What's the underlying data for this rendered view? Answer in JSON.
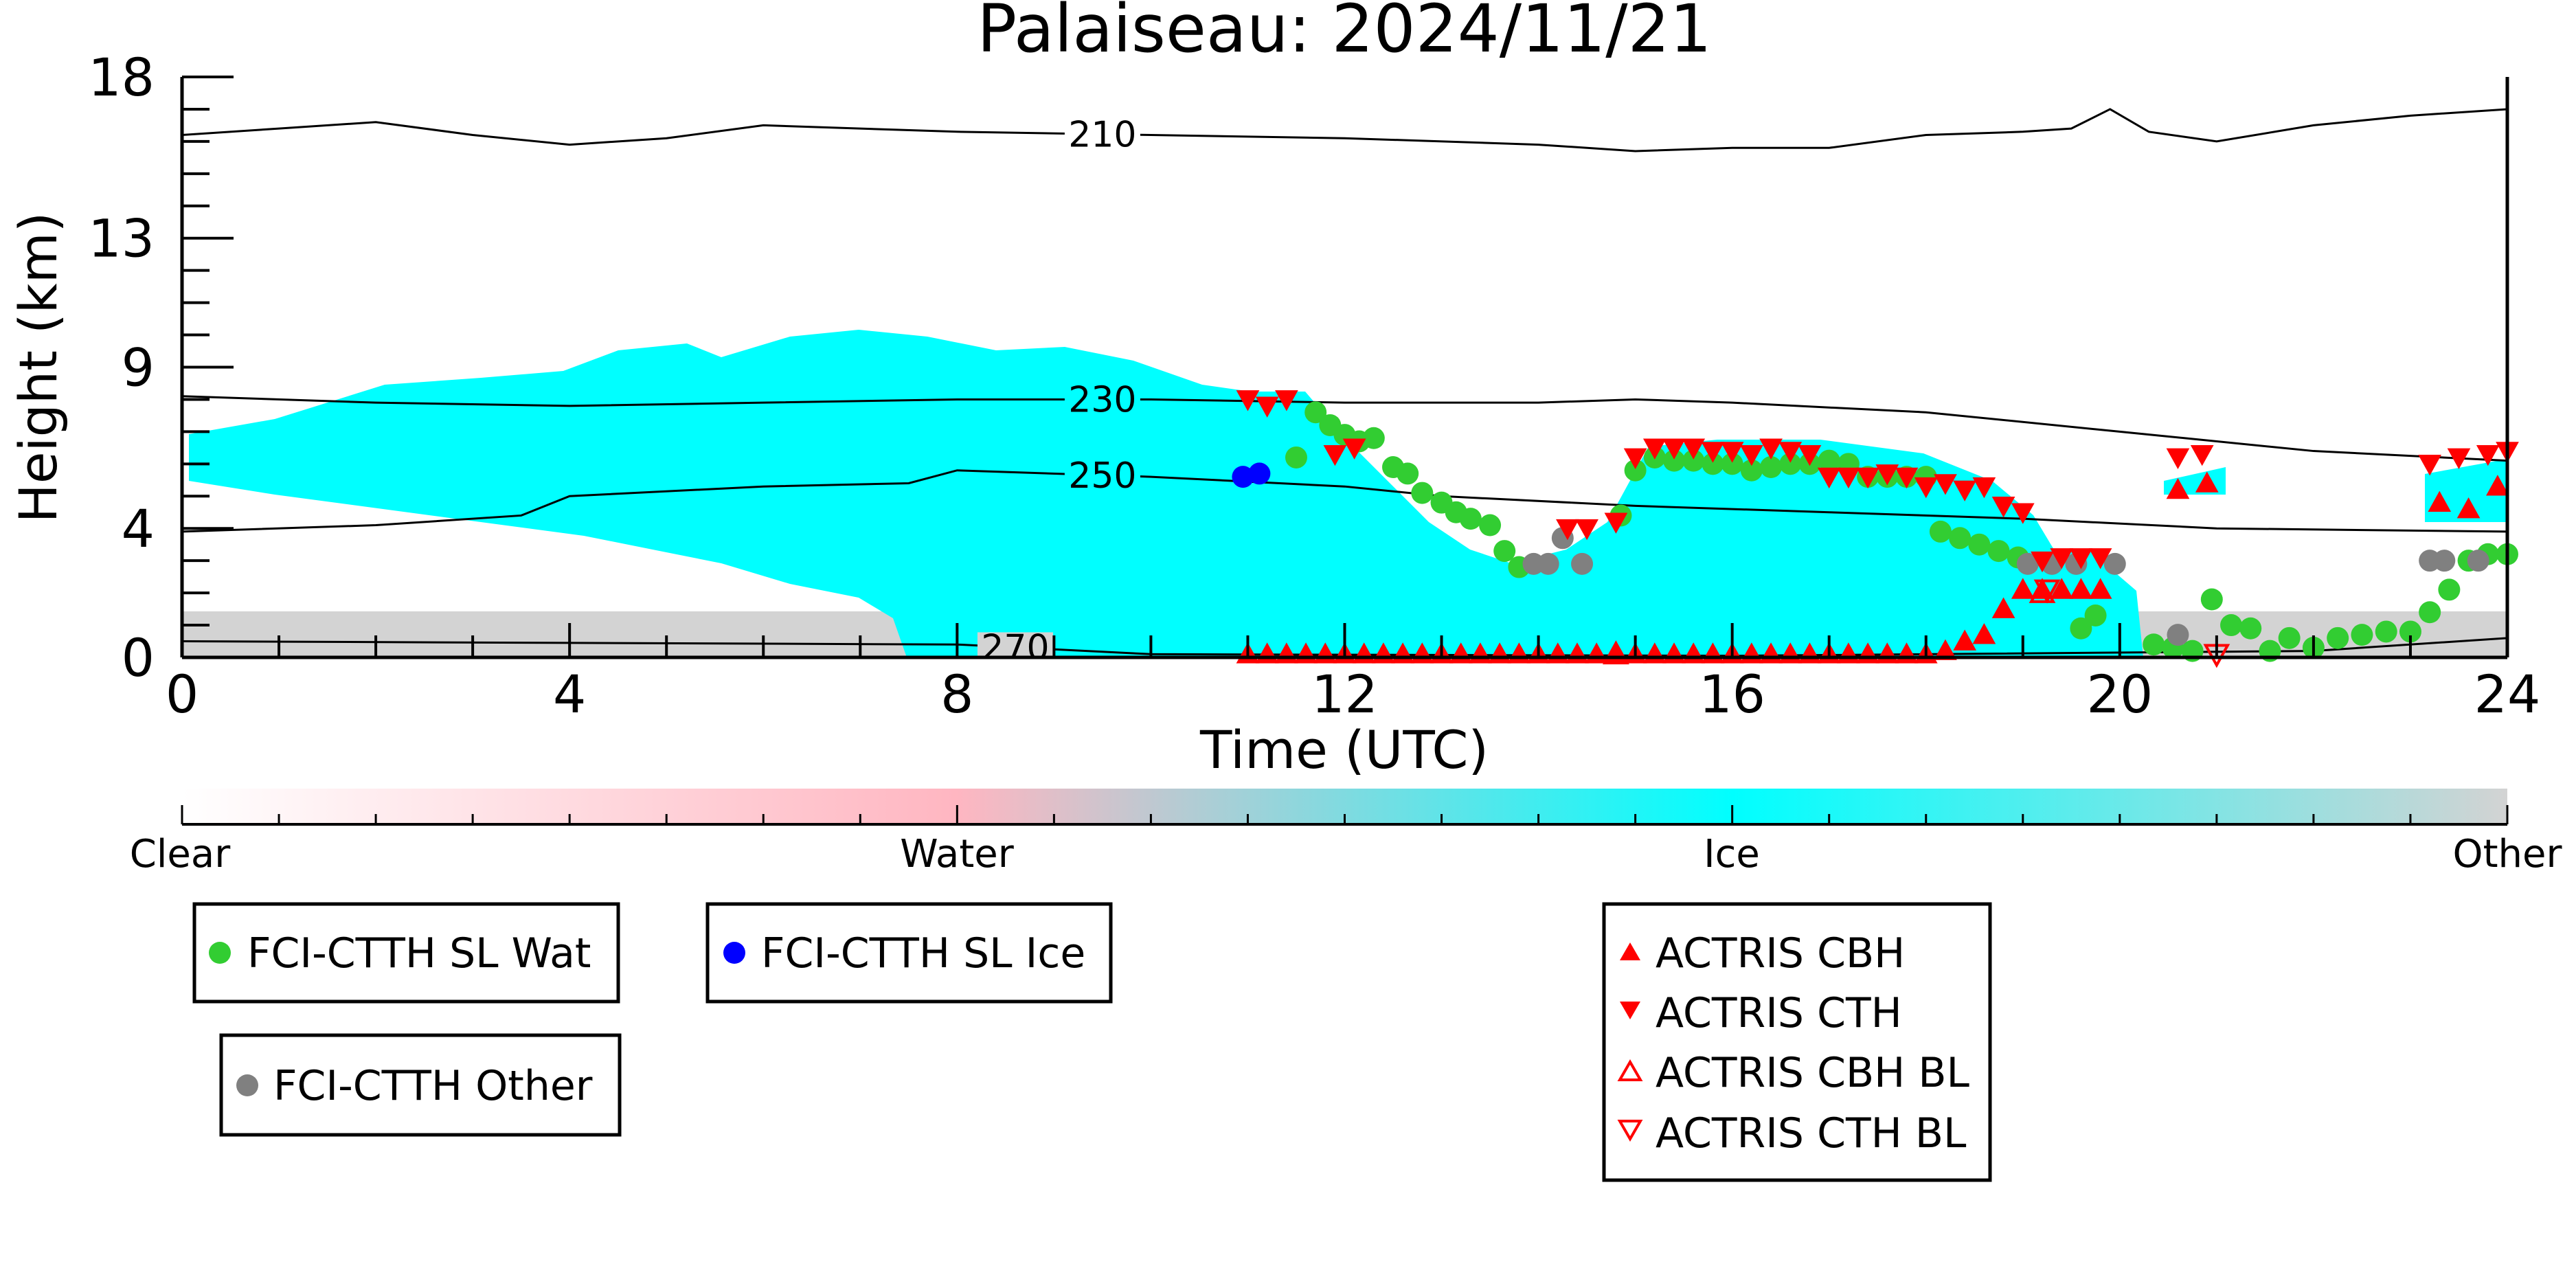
{
  "chart_data": {
    "type": "scatter",
    "title": "Palaiseau: 2024/11/21",
    "xlabel": "Time (UTC)",
    "ylabel": "Height (km)",
    "xlim": [
      0,
      24
    ],
    "ylim": [
      0,
      18
    ],
    "xticks": [
      0,
      4,
      8,
      12,
      16,
      20,
      24
    ],
    "yticks": [
      0,
      4,
      9,
      13,
      18
    ],
    "grid": false,
    "colorbar": {
      "labels": [
        "Clear",
        "Water",
        "Ice",
        "Other"
      ],
      "positions": [
        0,
        1,
        2,
        3
      ],
      "colors": [
        "#ffffff",
        "#ffb6c1",
        "#00ffff",
        "#d3d3d3"
      ]
    },
    "contours": [
      {
        "label": "210",
        "x": [
          0,
          1,
          2,
          3,
          4,
          5,
          6,
          8,
          10,
          12,
          14,
          15,
          16,
          17,
          18,
          19,
          19.5,
          19.9,
          20.3,
          21,
          22,
          23,
          24
        ],
        "y": [
          16.2,
          16.4,
          16.6,
          16.2,
          15.9,
          16.1,
          16.5,
          16.3,
          16.2,
          16.1,
          15.9,
          15.7,
          15.8,
          15.8,
          16.2,
          16.3,
          16.4,
          17.0,
          16.3,
          16.0,
          16.5,
          16.8,
          17.0
        ],
        "label_x": 9.5
      },
      {
        "label": "230",
        "x": [
          0,
          2,
          4,
          6,
          8,
          10,
          12,
          14,
          15,
          16,
          18,
          20,
          22,
          24
        ],
        "y": [
          8.1,
          7.9,
          7.8,
          7.9,
          8.0,
          8.0,
          7.9,
          7.9,
          8.0,
          7.9,
          7.6,
          7.0,
          6.4,
          6.1
        ],
        "label_x": 9.5
      },
      {
        "label": "250",
        "x": [
          0,
          2,
          3.5,
          4,
          6,
          7.5,
          8,
          10,
          12,
          13,
          15,
          17,
          19,
          21,
          24
        ],
        "y": [
          3.9,
          4.1,
          4.4,
          5.0,
          5.3,
          5.4,
          5.8,
          5.6,
          5.3,
          5.0,
          4.7,
          4.5,
          4.3,
          4.0,
          3.9
        ],
        "label_x": 9.5
      },
      {
        "label": "270",
        "x": [
          0,
          4,
          8,
          10,
          16,
          22,
          24
        ],
        "y": [
          0.5,
          0.45,
          0.4,
          0.1,
          0.05,
          0.2,
          0.6
        ],
        "label_x": 8.6
      }
    ],
    "series": [
      {
        "name": "FCI-CTTH SL Wat",
        "marker": "circle",
        "color": "#32cd32",
        "x": [
          11.5,
          11.7,
          11.85,
          12.0,
          12.15,
          12.3,
          12.5,
          12.65,
          12.8,
          13.0,
          13.15,
          13.3,
          13.5,
          13.65,
          13.8,
          14.85,
          15.0,
          15.2,
          15.4,
          15.6,
          15.8,
          16.0,
          16.2,
          16.4,
          16.6,
          16.8,
          17.0,
          17.2,
          17.4,
          17.6,
          17.8,
          18.0,
          18.15,
          18.35,
          18.55,
          18.75,
          18.95,
          19.6,
          19.75,
          20.35,
          20.55,
          20.75,
          20.95,
          21.15,
          21.35,
          21.55,
          21.75,
          22.0,
          22.25,
          22.5,
          22.75,
          23.0,
          23.2,
          23.4,
          23.6,
          23.8,
          24.0
        ],
        "y": [
          6.2,
          7.6,
          7.2,
          6.9,
          6.7,
          6.8,
          5.9,
          5.7,
          5.1,
          4.8,
          4.5,
          4.3,
          4.1,
          3.3,
          2.8,
          4.4,
          5.8,
          6.2,
          6.1,
          6.1,
          6.0,
          6.0,
          5.8,
          5.9,
          6.0,
          6.0,
          6.1,
          6.0,
          5.6,
          5.6,
          5.6,
          5.6,
          3.9,
          3.7,
          3.5,
          3.3,
          3.1,
          0.9,
          1.3,
          0.4,
          0.3,
          0.2,
          1.8,
          1.0,
          0.9,
          0.2,
          0.6,
          0.3,
          0.6,
          0.7,
          0.8,
          0.8,
          1.4,
          2.1,
          3.0,
          3.2,
          3.2
        ]
      },
      {
        "name": "FCI-CTTH SL Ice",
        "marker": "circle",
        "color": "#0000ff",
        "x": [
          10.95,
          11.12
        ],
        "y": [
          5.6,
          5.7
        ]
      },
      {
        "name": "FCI-CTTH Other",
        "marker": "circle",
        "color": "#808080",
        "x": [
          13.95,
          14.1,
          14.25,
          14.45,
          19.05,
          19.3,
          19.55,
          19.95,
          20.6,
          23.2,
          23.35,
          23.7
        ],
        "y": [
          2.9,
          2.9,
          3.7,
          2.9,
          2.9,
          2.9,
          2.9,
          2.9,
          0.7,
          3.0,
          3.0,
          3.0
        ]
      },
      {
        "name": "ACTRIS CBH",
        "marker": "triangle-up",
        "color": "#ff0000",
        "x": [
          11.0,
          11.2,
          11.4,
          11.6,
          11.8,
          12.0,
          12.2,
          12.4,
          12.6,
          12.8,
          13.0,
          13.2,
          13.4,
          13.6,
          13.8,
          14.0,
          14.2,
          14.4,
          14.6,
          14.8,
          15.0,
          15.2,
          15.4,
          15.6,
          15.8,
          16.0,
          16.2,
          16.4,
          16.6,
          16.8,
          17.0,
          17.2,
          17.4,
          17.6,
          17.8,
          18.0,
          18.2,
          18.4,
          18.6,
          18.8,
          19.0,
          19.2,
          19.4,
          19.6,
          19.8,
          20.6,
          20.9,
          23.3,
          23.6,
          23.9
        ],
        "y": [
          0.1,
          0.1,
          0.1,
          0.1,
          0.1,
          0.1,
          0.1,
          0.1,
          0.1,
          0.1,
          0.1,
          0.1,
          0.1,
          0.1,
          0.1,
          0.1,
          0.1,
          0.1,
          0.1,
          0.1,
          0.1,
          0.1,
          0.1,
          0.1,
          0.1,
          0.1,
          0.1,
          0.1,
          0.1,
          0.1,
          0.1,
          0.1,
          0.1,
          0.1,
          0.1,
          0.1,
          0.2,
          0.5,
          0.7,
          1.5,
          2.1,
          2.1,
          2.1,
          2.1,
          2.1,
          5.2,
          5.4,
          4.8,
          4.6,
          5.3
        ]
      },
      {
        "name": "ACTRIS CTH",
        "marker": "triangle-down",
        "color": "#ff0000",
        "x": [
          11.0,
          11.2,
          11.4,
          11.9,
          12.1,
          14.3,
          14.5,
          14.8,
          15.0,
          15.2,
          15.4,
          15.6,
          15.8,
          16.0,
          16.2,
          16.4,
          16.6,
          16.8,
          17.0,
          17.2,
          17.4,
          17.6,
          17.8,
          18.0,
          18.2,
          18.4,
          18.6,
          18.8,
          19.0,
          19.2,
          19.4,
          19.6,
          19.8,
          20.6,
          20.85,
          23.2,
          23.5,
          23.8,
          24.0
        ],
        "y": [
          8.0,
          7.8,
          8.0,
          6.3,
          6.5,
          4.0,
          4.0,
          4.2,
          6.2,
          6.5,
          6.5,
          6.5,
          6.4,
          6.4,
          6.3,
          6.5,
          6.4,
          6.3,
          5.6,
          5.6,
          5.6,
          5.7,
          5.6,
          5.3,
          5.4,
          5.2,
          5.3,
          4.7,
          4.5,
          3.0,
          3.1,
          3.1,
          3.1,
          6.2,
          6.3,
          6.0,
          6.2,
          6.3,
          6.4
        ]
      },
      {
        "name": "ACTRIS CBH BL",
        "marker": "triangle-up-open",
        "color": "#ff0000",
        "x": [
          14.8,
          19.2
        ],
        "y": [
          0.1,
          2.0
        ]
      },
      {
        "name": "ACTRIS CTH BL",
        "marker": "triangle-down-open",
        "color": "#ff0000",
        "x": [
          19.25,
          21.0
        ],
        "y": [
          2.1,
          0.1
        ]
      }
    ],
    "legends": [
      {
        "entries": [
          "FCI-CTTH SL Wat"
        ]
      },
      {
        "entries": [
          "FCI-CTTH SL Ice"
        ]
      },
      {
        "entries": [
          "FCI-CTTH Other"
        ]
      },
      {
        "entries": [
          "ACTRIS CBH",
          "ACTRIS CTH",
          "ACTRIS CBH BL",
          "ACTRIS CTH BL"
        ]
      }
    ]
  }
}
